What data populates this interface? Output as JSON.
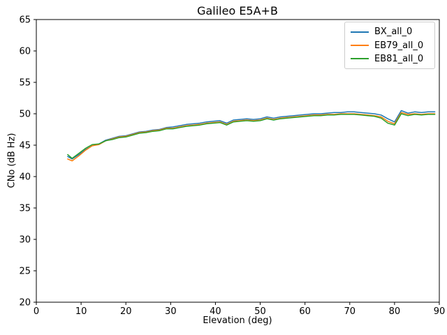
{
  "chart_data": {
    "type": "line",
    "title": "Galileo E5A+B",
    "xlabel": "Elevation (deg)",
    "ylabel": "CNo (dB Hz)",
    "xlim": [
      0,
      90
    ],
    "ylim": [
      20,
      65
    ],
    "xticks": [
      0,
      10,
      20,
      30,
      40,
      50,
      60,
      70,
      80,
      90
    ],
    "yticks": [
      20,
      25,
      30,
      35,
      40,
      45,
      50,
      55,
      60,
      65
    ],
    "grid": false,
    "legend_position": "upper right",
    "x": [
      7,
      8,
      9.5,
      11,
      12.5,
      14,
      15.5,
      17,
      18.5,
      20,
      21.5,
      23,
      24.5,
      26,
      27.5,
      29,
      30.5,
      32,
      33.5,
      35,
      36.5,
      38,
      39.5,
      41,
      42.5,
      44,
      45.5,
      47,
      48.5,
      50,
      51.5,
      53,
      54.5,
      56,
      57.5,
      59,
      60.5,
      62,
      63.5,
      65,
      66.5,
      68,
      69.5,
      71,
      72.5,
      74,
      75.5,
      77,
      78.5,
      80,
      81.5,
      83,
      84.5,
      86,
      87.5,
      89
    ],
    "series": [
      {
        "name": "BX_all_0",
        "color": "#1f77b4",
        "values": [
          43.2,
          42.8,
          43.5,
          44.3,
          44.9,
          45.2,
          45.8,
          46.1,
          46.4,
          46.5,
          46.8,
          47.1,
          47.2,
          47.4,
          47.5,
          47.8,
          47.9,
          48.1,
          48.3,
          48.4,
          48.5,
          48.7,
          48.8,
          48.9,
          48.5,
          49.0,
          49.1,
          49.2,
          49.1,
          49.2,
          49.5,
          49.3,
          49.5,
          49.6,
          49.7,
          49.8,
          49.9,
          50.0,
          50.0,
          50.1,
          50.2,
          50.2,
          50.3,
          50.3,
          50.2,
          50.1,
          50.0,
          49.8,
          49.2,
          48.7,
          50.5,
          50.1,
          50.3,
          50.2,
          50.3,
          50.3
        ]
      },
      {
        "name": "EB79_all_0",
        "color": "#ff7f0e",
        "values": [
          42.8,
          42.5,
          43.3,
          44.2,
          44.9,
          45.1,
          45.7,
          46.0,
          46.3,
          46.4,
          46.7,
          47.0,
          47.1,
          47.3,
          47.4,
          47.7,
          47.7,
          47.9,
          48.1,
          48.2,
          48.3,
          48.5,
          48.6,
          48.7,
          48.3,
          48.8,
          48.9,
          49.0,
          48.9,
          49.0,
          49.3,
          49.1,
          49.3,
          49.4,
          49.5,
          49.6,
          49.7,
          49.8,
          49.8,
          49.9,
          49.9,
          50.0,
          50.0,
          50.0,
          49.9,
          49.8,
          49.7,
          49.5,
          48.8,
          48.4,
          50.2,
          49.9,
          50.0,
          49.9,
          50.0,
          50.0
        ]
      },
      {
        "name": "EB81_all_0",
        "color": "#2ca02c",
        "values": [
          43.5,
          42.9,
          43.7,
          44.5,
          45.1,
          45.2,
          45.7,
          45.9,
          46.2,
          46.3,
          46.6,
          46.9,
          47.0,
          47.2,
          47.3,
          47.6,
          47.6,
          47.8,
          48.0,
          48.1,
          48.2,
          48.4,
          48.5,
          48.6,
          48.2,
          48.7,
          48.8,
          48.9,
          48.8,
          48.9,
          49.2,
          49.0,
          49.2,
          49.3,
          49.4,
          49.5,
          49.6,
          49.7,
          49.7,
          49.8,
          49.8,
          49.9,
          49.9,
          49.9,
          49.8,
          49.7,
          49.6,
          49.3,
          48.5,
          48.2,
          50.0,
          49.7,
          49.9,
          49.8,
          49.9,
          49.9
        ]
      }
    ],
    "style": {
      "spine_color": "#000000",
      "tick_color": "#000000",
      "line_width": 1.5,
      "background": "#ffffff"
    }
  }
}
